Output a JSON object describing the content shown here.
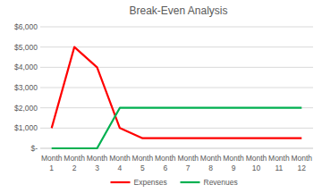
{
  "chart_data": {
    "type": "line",
    "title": "Break-Even Analysis",
    "categories": [
      "Month 1",
      "Month 2",
      "Month 3",
      "Month 4",
      "Month 5",
      "Month 6",
      "Month 7",
      "Month 8",
      "Month 9",
      "Month 10",
      "Month 11",
      "Month 12"
    ],
    "series": [
      {
        "name": "Expenses",
        "color": "#ff0000",
        "values": [
          1000,
          5000,
          4000,
          1000,
          500,
          500,
          500,
          500,
          500,
          500,
          500,
          500
        ]
      },
      {
        "name": "Revenues",
        "color": "#00b050",
        "values": [
          0,
          0,
          0,
          2000,
          2000,
          2000,
          2000,
          2000,
          2000,
          2000,
          2000,
          2000
        ]
      }
    ],
    "ylim": [
      0,
      6000
    ],
    "yticks": [
      {
        "value": 0,
        "label": "$-"
      },
      {
        "value": 1000,
        "label": "$1,000"
      },
      {
        "value": 2000,
        "label": "$2,000"
      },
      {
        "value": 3000,
        "label": "$3,000"
      },
      {
        "value": 4000,
        "label": "$4,000"
      },
      {
        "value": 5000,
        "label": "$5,000"
      },
      {
        "value": 6000,
        "label": "$6,000"
      }
    ],
    "grid": true,
    "legend": "bottom"
  }
}
